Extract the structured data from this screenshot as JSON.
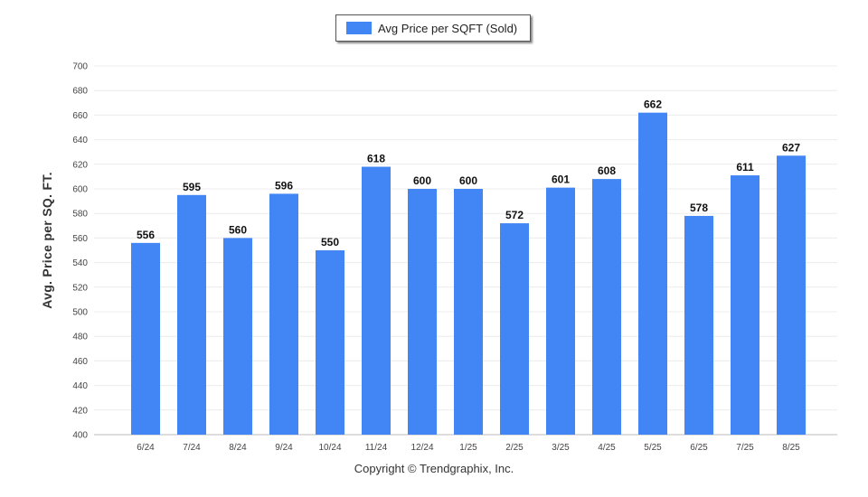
{
  "chart_data": {
    "type": "bar",
    "categories": [
      "6/24",
      "7/24",
      "8/24",
      "9/24",
      "10/24",
      "11/24",
      "12/24",
      "1/25",
      "2/25",
      "3/25",
      "4/25",
      "5/25",
      "6/25",
      "7/25",
      "8/25"
    ],
    "series": [
      {
        "name": "Avg Price per SQFT (Sold)",
        "values": [
          556,
          595,
          560,
          596,
          550,
          618,
          600,
          600,
          572,
          601,
          608,
          662,
          578,
          611,
          627
        ],
        "color": "#4285f4"
      }
    ],
    "ylabel": "Avg. Price per SQ. FT.",
    "xlabel": "",
    "ylim": [
      400,
      700
    ],
    "yticks": [
      400,
      420,
      440,
      460,
      480,
      500,
      520,
      540,
      560,
      580,
      600,
      620,
      640,
      660,
      680,
      700
    ],
    "grid": true,
    "legend_position": "top-center",
    "data_labels": true
  },
  "footer": {
    "copyright": "Copyright © Trendgraphix, Inc."
  }
}
